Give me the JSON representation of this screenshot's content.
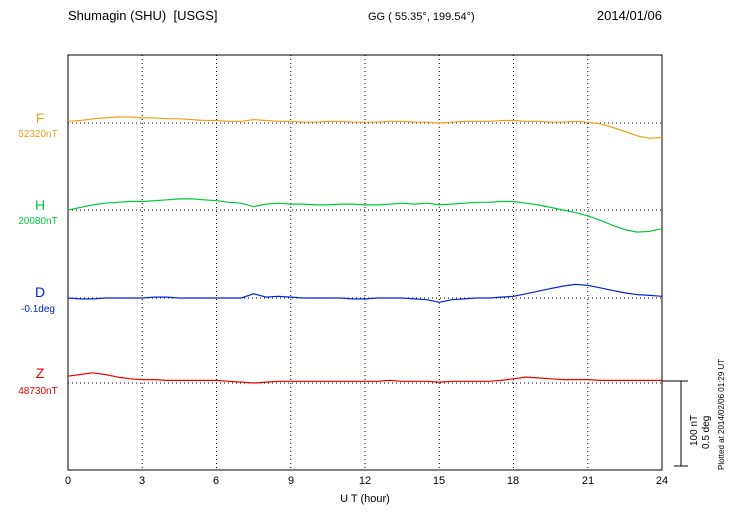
{
  "header": {
    "title": "Shumagin (SHU)  [USGS]",
    "coords": "GG ( 55.35°, 199.54°)",
    "date": "2014/01/06"
  },
  "axis": {
    "xlabel": "U T (hour)",
    "x_ticks": [
      "0",
      "3",
      "6",
      "9",
      "12",
      "15",
      "18",
      "21",
      "24"
    ]
  },
  "scalebar": {
    "nt_label": "100 nT",
    "deg_label": "0.5 deg"
  },
  "footer_note": "Plotted at 2014/02/06 01:29 UT",
  "colors": {
    "F": "#f0a020",
    "H": "#00c83c",
    "D": "#0022dd",
    "Z": "#ee0000"
  },
  "chart_data": {
    "type": "line",
    "title": "Shumagin (SHU) [USGS] magnetogram 2014/01/06",
    "xlabel": "U T (hour)",
    "x_range": [
      0,
      24
    ],
    "x_step": 0.5,
    "x_tick_hours": [
      0,
      3,
      6,
      9,
      12,
      15,
      18,
      21,
      24
    ],
    "grid": "dotted vertical lines every 3 hours; dotted horizontal baseline per trace",
    "scale": {
      "nT_per_bar": 100,
      "deg_per_bar": 0.5
    },
    "series": [
      {
        "name": "F",
        "unit": "nT",
        "baseline": 52320,
        "baseline_label": "52320nT",
        "values": [
          52322,
          52323,
          52325,
          52326,
          52327,
          52327,
          52326,
          52326,
          52325,
          52325,
          52324,
          52323,
          52323,
          52322,
          52322,
          52324,
          52323,
          52322,
          52322,
          52321,
          52321,
          52322,
          52322,
          52321,
          52321,
          52321,
          52322,
          52322,
          52321,
          52321,
          52320,
          52321,
          52322,
          52322,
          52322,
          52323,
          52323,
          52322,
          52322,
          52321,
          52321,
          52322,
          52321,
          52319,
          52315,
          52310,
          52305,
          52302,
          52303
        ]
      },
      {
        "name": "H",
        "unit": "nT",
        "baseline": 20080,
        "baseline_label": "20080nT",
        "values": [
          20080,
          20083,
          20086,
          20088,
          20089,
          20090,
          20090,
          20091,
          20092,
          20093,
          20093,
          20092,
          20091,
          20089,
          20088,
          20084,
          20087,
          20088,
          20087,
          20087,
          20086,
          20086,
          20087,
          20087,
          20086,
          20086,
          20087,
          20088,
          20087,
          20088,
          20086,
          20087,
          20088,
          20089,
          20089,
          20090,
          20090,
          20088,
          20086,
          20083,
          20080,
          20077,
          20073,
          20068,
          20062,
          20057,
          20054,
          20055,
          20058
        ]
      },
      {
        "name": "D",
        "unit": "deg",
        "baseline": -0.1,
        "baseline_label": "-0.1deg",
        "values": [
          -0.1,
          -0.105,
          -0.105,
          -0.1,
          -0.1,
          -0.1,
          -0.1,
          -0.095,
          -0.095,
          -0.1,
          -0.1,
          -0.1,
          -0.1,
          -0.1,
          -0.1,
          -0.075,
          -0.095,
          -0.09,
          -0.095,
          -0.1,
          -0.1,
          -0.1,
          -0.1,
          -0.105,
          -0.105,
          -0.1,
          -0.1,
          -0.1,
          -0.105,
          -0.11,
          -0.125,
          -0.11,
          -0.105,
          -0.1,
          -0.1,
          -0.095,
          -0.09,
          -0.075,
          -0.06,
          -0.045,
          -0.03,
          -0.02,
          -0.025,
          -0.04,
          -0.055,
          -0.07,
          -0.08,
          -0.085,
          -0.09
        ]
      },
      {
        "name": "Z",
        "unit": "nT",
        "baseline": 48730,
        "baseline_label": "48730nT",
        "values": [
          48738,
          48740,
          48742,
          48740,
          48737,
          48735,
          48734,
          48734,
          48733,
          48733,
          48733,
          48733,
          48733,
          48732,
          48731,
          48730,
          48731,
          48732,
          48732,
          48732,
          48732,
          48732,
          48732,
          48732,
          48732,
          48732,
          48733,
          48732,
          48732,
          48732,
          48731,
          48732,
          48732,
          48732,
          48732,
          48733,
          48735,
          48737,
          48736,
          48735,
          48734,
          48734,
          48734,
          48733,
          48733,
          48733,
          48733,
          48733,
          48733
        ]
      }
    ]
  }
}
